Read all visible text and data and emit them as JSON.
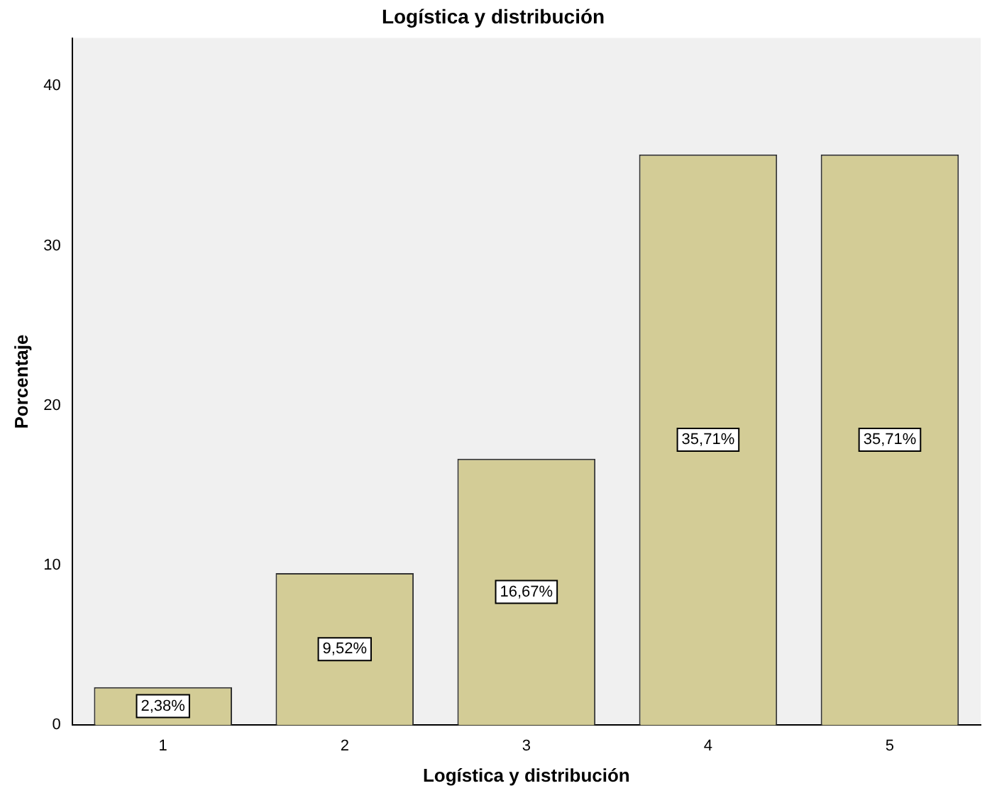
{
  "chart_data": {
    "type": "bar",
    "title": "Logística y distribución",
    "xlabel": "Logística y distribución",
    "ylabel": "Porcentaje",
    "categories": [
      "1",
      "2",
      "3",
      "4",
      "5"
    ],
    "values": [
      2.38,
      9.52,
      16.67,
      35.71,
      35.71
    ],
    "value_labels": [
      "2,38%",
      "9,52%",
      "16,67%",
      "35,71%",
      "35,71%"
    ],
    "color": "#d3cc96",
    "ylim": [
      0,
      43
    ],
    "yticks": [
      0,
      10,
      20,
      30,
      40
    ],
    "grid": false,
    "legend": false
  }
}
